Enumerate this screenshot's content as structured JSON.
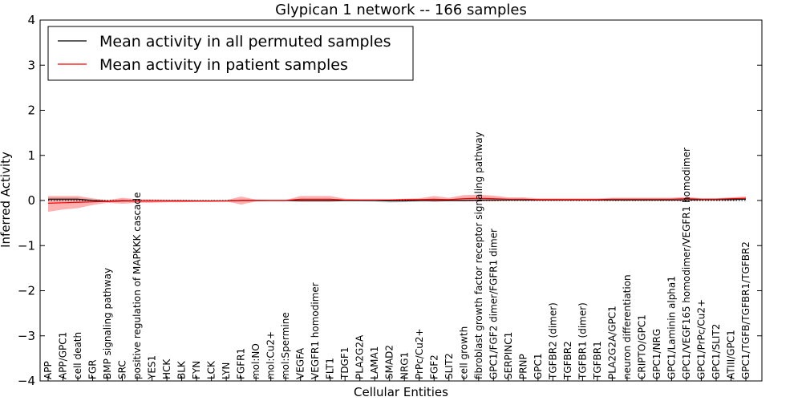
{
  "chart_data": {
    "type": "line",
    "title": "Glypican 1 network -- 166 samples",
    "xlabel": "Cellular Entities",
    "ylabel": "Inferred Activity",
    "ylim": [
      -4,
      4
    ],
    "yticks": [
      -4,
      -3,
      -2,
      -1,
      0,
      1,
      2,
      3,
      4
    ],
    "grid": false,
    "legend_placement": "top-left",
    "categories": [
      "APP",
      "APP/GPC1",
      "cell death",
      "FGR",
      "BMP signaling pathway",
      "SRC",
      "positive regulation of MAPKKK cascade",
      "YES1",
      "HCK",
      "BLK",
      "FYN",
      "LCK",
      "LYN",
      "FGFR1",
      "mol:NO",
      "mol:Cu2+",
      "mol:Spermine",
      "VEGFA",
      "VEGFR1 homodimer",
      "FLT1",
      "TDGF1",
      "PLA2G2A",
      "LAMA1",
      "SMAD2",
      "NRG1",
      "PrPc/Cu2+",
      "FGF2",
      "SLIT2",
      "cell growth",
      "fibroblast growth factor receptor signaling pathway",
      "GPC1/FGF2 dimer/FGFR1 dimer",
      "SERPINC1",
      "PRNP",
      "GPC1",
      "TGFBR2 (dimer)",
      "TGFBR2",
      "TGFBR1 (dimer)",
      "TGFBR1",
      "PLA2G2A/GPC1",
      "neuron differentiation",
      "CRIPTO/GPC1",
      "GPC1/NRG",
      "GPC1/Laminin alpha1",
      "GPC1/VEGF165 homodimer/VEGFR1 homodimer",
      "GPC1/PrPc/Cu2+",
      "GPC1/SLIT2",
      "ATIII/GPC1",
      "GPC1/TGFB/TGFBR1/TGFBR2"
    ],
    "series": [
      {
        "name": "Mean activity in all permuted samples",
        "color": "#000000",
        "values": [
          0.03,
          0.03,
          0.03,
          0.0,
          -0.02,
          -0.01,
          -0.01,
          -0.01,
          -0.01,
          -0.01,
          -0.01,
          -0.01,
          -0.01,
          0.0,
          0.0,
          0.0,
          0.0,
          0.0,
          0.0,
          0.0,
          0.0,
          0.0,
          0.0,
          -0.01,
          -0.01,
          0.0,
          0.0,
          0.0,
          0.0,
          0.01,
          0.01,
          0.01,
          0.01,
          0.01,
          0.01,
          0.01,
          0.01,
          0.01,
          0.01,
          0.01,
          0.01,
          0.01,
          0.01,
          0.01,
          0.02,
          0.02,
          0.02,
          0.03
        ],
        "band": {
          "lower": [
            -0.01,
            -0.01,
            -0.01,
            -0.02,
            -0.04,
            -0.03,
            -0.03,
            -0.03,
            -0.03,
            -0.03,
            -0.03,
            -0.03,
            -0.03,
            -0.02,
            -0.02,
            -0.02,
            -0.02,
            -0.02,
            -0.02,
            -0.02,
            -0.02,
            -0.02,
            -0.03,
            -0.05,
            -0.04,
            -0.03,
            -0.02,
            -0.02,
            -0.02,
            -0.01,
            -0.01,
            -0.01,
            -0.01,
            -0.01,
            -0.01,
            -0.01,
            -0.01,
            -0.01,
            -0.01,
            -0.01,
            -0.01,
            -0.01,
            -0.01,
            -0.01,
            0.0,
            0.0,
            0.0,
            0.01
          ],
          "upper": [
            0.07,
            0.07,
            0.07,
            0.02,
            0.0,
            0.01,
            0.01,
            0.01,
            0.01,
            0.01,
            0.01,
            0.01,
            0.01,
            0.02,
            0.02,
            0.02,
            0.02,
            0.02,
            0.02,
            0.02,
            0.02,
            0.02,
            0.02,
            0.02,
            0.02,
            0.03,
            0.02,
            0.02,
            0.02,
            0.03,
            0.03,
            0.03,
            0.03,
            0.03,
            0.03,
            0.03,
            0.03,
            0.03,
            0.03,
            0.03,
            0.03,
            0.03,
            0.03,
            0.03,
            0.04,
            0.04,
            0.04,
            0.05
          ],
          "color": "#b0b0b0"
        }
      },
      {
        "name": "Mean activity in patient samples",
        "color": "#ff0000",
        "values": [
          -0.06,
          -0.05,
          -0.04,
          -0.03,
          -0.02,
          0.0,
          -0.01,
          -0.01,
          -0.01,
          -0.01,
          -0.01,
          -0.01,
          -0.01,
          0.0,
          0.0,
          0.0,
          0.0,
          0.03,
          0.03,
          0.03,
          0.01,
          0.01,
          0.01,
          0.01,
          0.02,
          0.02,
          0.03,
          0.02,
          0.04,
          0.05,
          0.04,
          0.03,
          0.03,
          0.02,
          0.02,
          0.02,
          0.02,
          0.02,
          0.03,
          0.03,
          0.03,
          0.03,
          0.03,
          0.04,
          0.03,
          0.03,
          0.04,
          0.05
        ],
        "band": {
          "lower": [
            -0.25,
            -0.2,
            -0.17,
            -0.1,
            -0.05,
            -0.07,
            -0.05,
            -0.05,
            -0.04,
            -0.04,
            -0.03,
            -0.03,
            -0.02,
            -0.09,
            -0.02,
            -0.01,
            -0.01,
            -0.03,
            -0.03,
            -0.03,
            -0.01,
            -0.01,
            -0.01,
            -0.01,
            0.0,
            0.0,
            -0.03,
            -0.01,
            -0.02,
            -0.02,
            -0.02,
            0.0,
            0.0,
            0.0,
            0.0,
            0.0,
            0.0,
            0.0,
            0.01,
            0.01,
            0.01,
            0.01,
            0.01,
            0.01,
            0.01,
            0.01,
            0.02,
            0.02
          ],
          "upper": [
            0.1,
            0.1,
            0.1,
            0.05,
            0.01,
            0.06,
            0.03,
            0.03,
            0.02,
            0.02,
            0.01,
            0.01,
            0.01,
            0.09,
            0.02,
            0.01,
            0.01,
            0.1,
            0.1,
            0.1,
            0.04,
            0.03,
            0.03,
            0.03,
            0.04,
            0.05,
            0.1,
            0.06,
            0.12,
            0.13,
            0.11,
            0.07,
            0.07,
            0.05,
            0.05,
            0.05,
            0.05,
            0.05,
            0.06,
            0.06,
            0.06,
            0.06,
            0.06,
            0.08,
            0.05,
            0.05,
            0.07,
            0.09
          ],
          "color": "#ff0000"
        }
      }
    ],
    "reference_line": {
      "value": 0,
      "style": "dotted"
    }
  }
}
